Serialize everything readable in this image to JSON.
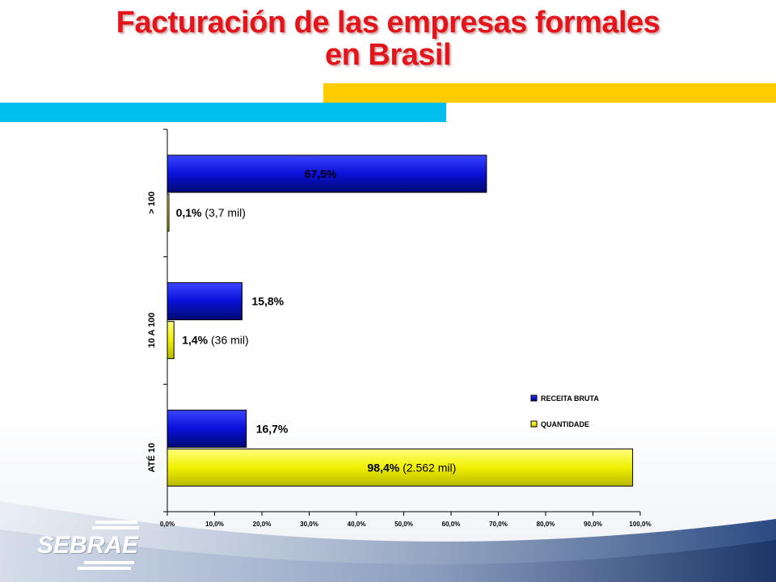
{
  "title": {
    "line1": "Facturación de las empresas formales",
    "line2": "en Brasil"
  },
  "logo": {
    "text": "SEBRAE"
  },
  "colors": {
    "title": "#e3141a",
    "band_yellow": "#ffcc00",
    "band_blue": "#00bfef",
    "receita_bar": "#0a10d8",
    "quantidade_bar": "#f0f000"
  },
  "chart_data": {
    "type": "bar",
    "orientation": "horizontal",
    "categories": [
      "> 100",
      "10 A 100",
      "ATÉ 10"
    ],
    "series": [
      {
        "name": "RECEITA BRUTA",
        "values": [
          67.5,
          15.8,
          16.7
        ],
        "labels": [
          "67,5%",
          "15,8%",
          "16,7%"
        ],
        "notes": [
          "",
          "",
          ""
        ]
      },
      {
        "name": "QUANTIDADE",
        "values": [
          0.1,
          1.4,
          98.4
        ],
        "labels": [
          "0,1%",
          "1,4%",
          "98,4%"
        ],
        "notes": [
          "(3,7 mil)",
          "(36 mil)",
          "(2.562  mil)"
        ]
      }
    ],
    "xlim": [
      0,
      100
    ],
    "xticks": [
      "0,0%",
      "10,0%",
      "20,0%",
      "30,0%",
      "40,0%",
      "50,0%",
      "60,0%",
      "70,0%",
      "80,0%",
      "90,0%",
      "100,0%"
    ],
    "legend_position": "right",
    "grid": false
  }
}
